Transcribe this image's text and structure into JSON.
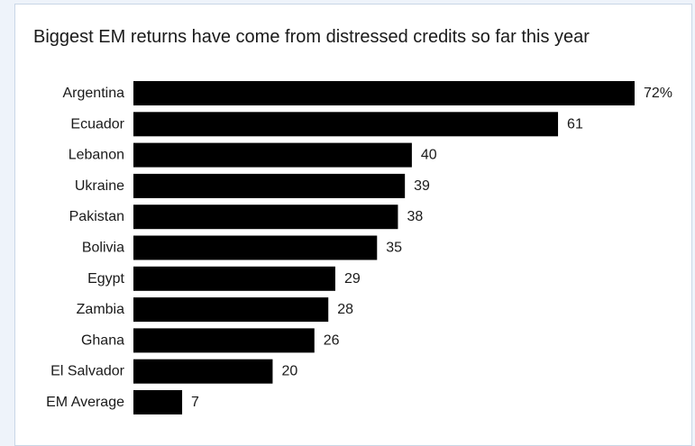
{
  "chart_data": {
    "type": "bar",
    "orientation": "horizontal",
    "title": "Biggest EM returns have come from distressed credits so far this year",
    "categories": [
      "Argentina",
      "Ecuador",
      "Lebanon",
      "Ukraine",
      "Pakistan",
      "Bolivia",
      "Egypt",
      "Zambia",
      "Ghana",
      "El Salvador",
      "EM Average"
    ],
    "values": [
      72,
      61,
      40,
      39,
      38,
      35,
      29,
      28,
      26,
      20,
      7
    ],
    "value_labels": [
      "72%",
      "61",
      "40",
      "39",
      "38",
      "35",
      "29",
      "28",
      "26",
      "20",
      "7"
    ],
    "xlim": [
      0,
      72
    ],
    "grid": false,
    "bar_color": "#000000"
  }
}
